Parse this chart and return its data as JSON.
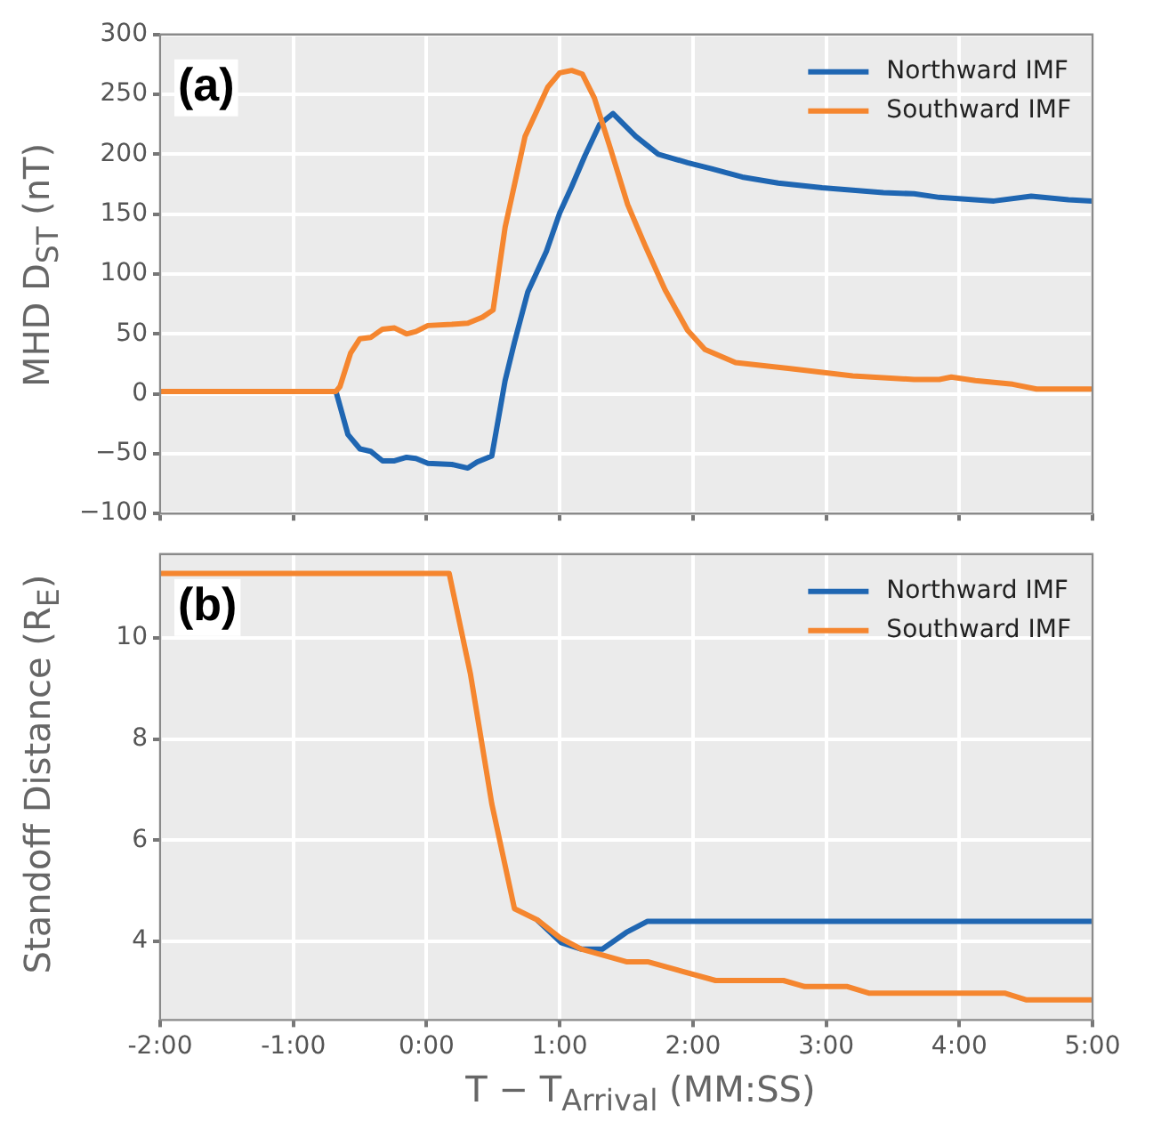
{
  "chart_data": [
    {
      "type": "line",
      "ylabel": "MHD D$_{ST}$ (nT)",
      "annotations": [
        "(a)"
      ],
      "xlim": [
        -2,
        5
      ],
      "ylim": [
        -100,
        300
      ],
      "xticks": [
        {
          "value": -2,
          "label": null
        },
        {
          "value": -1,
          "label": null
        },
        {
          "value": 0,
          "label": null
        },
        {
          "value": 1,
          "label": null
        },
        {
          "value": 2,
          "label": null
        },
        {
          "value": 3,
          "label": null
        },
        {
          "value": 4,
          "label": null
        },
        {
          "value": 5,
          "label": null
        }
      ],
      "yticks": [
        -100,
        -50,
        0,
        50,
        100,
        150,
        200,
        250,
        300
      ],
      "grid": true,
      "legend": "top right",
      "tick_labels": "y",
      "series": [
        {
          "name": "Northward IMF",
          "color": "#1f66b2",
          "x": [
            -2,
            -0.68,
            -0.59,
            -0.5,
            -0.42,
            -0.33,
            -0.24,
            -0.15,
            -0.08,
            0.01,
            0.19,
            0.31,
            0.38,
            0.49,
            0.59,
            0.66,
            0.76,
            0.9,
            1.0,
            1.09,
            1.19,
            1.3,
            1.4,
            1.57,
            1.74,
            1.96,
            2.14,
            2.37,
            2.64,
            2.97,
            3.43,
            3.66,
            3.85,
            4.26,
            4.54,
            4.82,
            5.0
          ],
          "values": [
            2,
            2,
            -34,
            -46,
            -48,
            -56,
            -56,
            -53,
            -54,
            -58,
            -59,
            -62,
            -57,
            -52,
            11,
            43,
            85,
            119,
            151,
            173,
            199,
            225,
            234,
            215,
            200,
            193,
            188,
            181,
            176,
            172,
            168,
            167,
            164,
            161,
            165,
            162,
            161
          ]
        },
        {
          "name": "Southward IMF",
          "color": "#f5862f",
          "x": [
            -2,
            -0.68,
            -0.65,
            -0.57,
            -0.5,
            -0.42,
            -0.33,
            -0.24,
            -0.15,
            -0.08,
            0.01,
            0.19,
            0.31,
            0.42,
            0.5,
            0.59,
            0.74,
            0.91,
            1.0,
            1.09,
            1.17,
            1.26,
            1.38,
            1.51,
            1.64,
            1.79,
            1.96,
            2.09,
            2.32,
            2.73,
            3.2,
            3.66,
            3.85,
            3.94,
            4.12,
            4.4,
            4.58,
            4.72,
            5.0
          ],
          "values": [
            2,
            2,
            6,
            34,
            46,
            47,
            54,
            55,
            50,
            52,
            57,
            58,
            59,
            64,
            70,
            139,
            215,
            256,
            268,
            270,
            267,
            247,
            205,
            158,
            124,
            87,
            53,
            37,
            26,
            21,
            15,
            12,
            12,
            14,
            11,
            8,
            4,
            4,
            4
          ]
        }
      ]
    },
    {
      "type": "line",
      "ylabel": "Standoff Distance (R$_{E}$)",
      "xlabel": "T − T$_{Arrival}$ (MM:SS)",
      "annotations": [
        "(b)"
      ],
      "xlim": [
        -2,
        5
      ],
      "ylim": [
        2.45,
        11.65
      ],
      "xticks": [
        {
          "value": -2,
          "label": "-2:00"
        },
        {
          "value": -1,
          "label": "-1:00"
        },
        {
          "value": 0,
          "label": "0:00"
        },
        {
          "value": 1,
          "label": "1:00"
        },
        {
          "value": 2,
          "label": "2:00"
        },
        {
          "value": 3,
          "label": "3:00"
        },
        {
          "value": 4,
          "label": "4:00"
        },
        {
          "value": 5,
          "label": "5:00"
        }
      ],
      "yticks": [
        4,
        6,
        8,
        10
      ],
      "grid": true,
      "legend": "top right",
      "series": [
        {
          "name": "Northward IMF",
          "color": "#1f66b2",
          "x": [
            0.83,
            1.01,
            1.16,
            1.32,
            1.5,
            1.66,
            5.0
          ],
          "values": [
            4.43,
            3.98,
            3.85,
            3.85,
            4.18,
            4.4,
            4.4
          ]
        },
        {
          "name": "Southward IMF",
          "color": "#f5862f",
          "x": [
            -2,
            0.17,
            0.33,
            0.49,
            0.66,
            0.83,
            1.01,
            1.16,
            1.5,
            1.66,
            2.17,
            2.68,
            2.84,
            3.16,
            3.32,
            4.34,
            4.5,
            5.0
          ],
          "values": [
            11.27,
            11.27,
            9.28,
            6.72,
            4.65,
            4.43,
            4.06,
            3.85,
            3.6,
            3.6,
            3.23,
            3.23,
            3.11,
            3.11,
            2.98,
            2.98,
            2.85,
            2.85
          ]
        }
      ]
    }
  ]
}
